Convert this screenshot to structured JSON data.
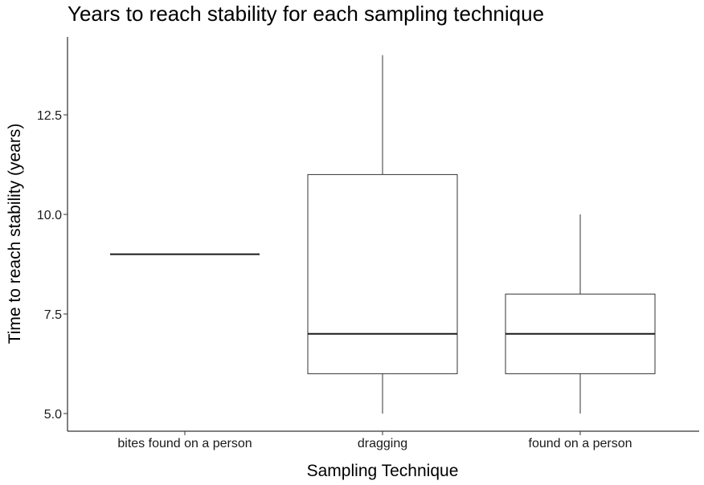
{
  "chart_data": {
    "type": "box",
    "title": "Years to reach stability for each sampling technique",
    "xlabel": "Sampling Technique",
    "ylabel": "Time to reach stability (years)",
    "categories": [
      "bites found on a person",
      "dragging",
      "found on a person"
    ],
    "boxes": [
      {
        "category": "bites found on a person",
        "min": 9,
        "q1": 9,
        "median": 9,
        "q3": 9,
        "max": 9
      },
      {
        "category": "dragging",
        "min": 5,
        "q1": 6,
        "median": 7,
        "q3": 11,
        "max": 14
      },
      {
        "category": "found on a person",
        "min": 5,
        "q1": 6,
        "median": 7,
        "q3": 8,
        "max": 10
      }
    ],
    "y_ticks": [
      "5.0",
      "7.5",
      "10.0",
      "12.5"
    ],
    "grid": false,
    "colors": {
      "box_stroke": "#333333",
      "median": "#1a1a1a",
      "axis": "#000000"
    }
  }
}
